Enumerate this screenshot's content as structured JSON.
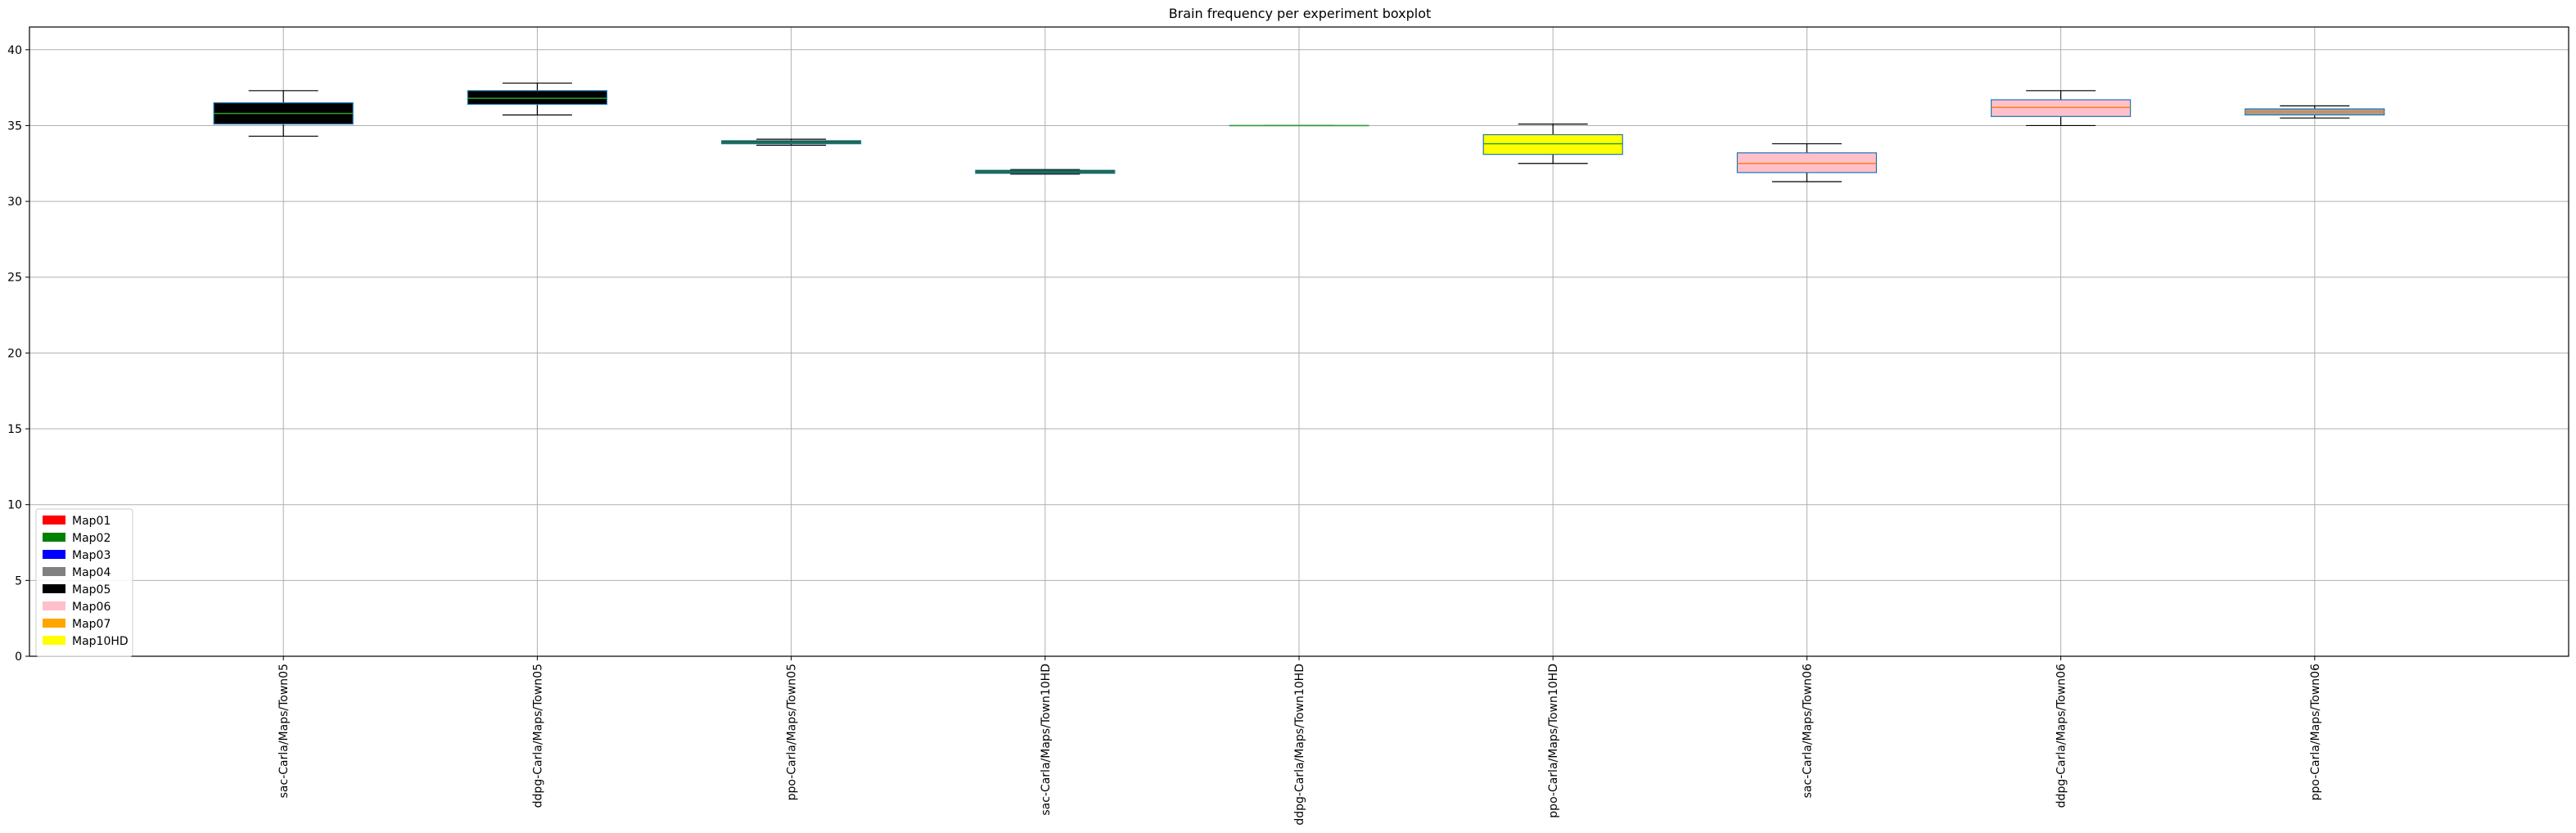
{
  "chart_data": {
    "type": "boxplot",
    "title": "Brain frequency per experiment boxplot",
    "xlabel": "",
    "ylabel": "",
    "ylim": [
      0,
      41.5
    ],
    "yticks": [
      0,
      5,
      10,
      15,
      20,
      25,
      30,
      35,
      40
    ],
    "grid": true,
    "legend_position": "lower-left",
    "categories": [
      "sac-Carla/Maps/Town05",
      "ddpg-Carla/Maps/Town05",
      "ppo-Carla/Maps/Town05",
      "sac-Carla/Maps/Town10HD",
      "ddpg-Carla/Maps/Town10HD",
      "ppo-Carla/Maps/Town10HD",
      "sac-Carla/Maps/Town06",
      "ddpg-Carla/Maps/Town06",
      "ppo-Carla/Maps/Town06"
    ],
    "boxes": [
      {
        "whisker_low": 34.3,
        "q1": 35.1,
        "median": 35.8,
        "q3": 36.5,
        "whisker_high": 37.3,
        "fill": "#000000",
        "edge": "#1f77b4",
        "median_color": "#2ca02c"
      },
      {
        "whisker_low": 35.7,
        "q1": 36.4,
        "median": 36.8,
        "q3": 37.3,
        "whisker_high": 37.8,
        "fill": "#000000",
        "edge": "#1f77b4",
        "median_color": "#2ca02c"
      },
      {
        "whisker_low": 33.7,
        "q1": 33.8,
        "median": 33.9,
        "q3": 34.0,
        "whisker_high": 34.1,
        "fill": "#000000",
        "edge": "#1f77b4",
        "median_color": "#2ca02c"
      },
      {
        "whisker_low": 31.8,
        "q1": 31.85,
        "median": 31.95,
        "q3": 32.05,
        "whisker_high": 32.1,
        "fill": "#000000",
        "edge": "#1f77b4",
        "median_color": "#2ca02c"
      },
      {
        "whisker_low": 35.0,
        "q1": 35.0,
        "median": 35.0,
        "q3": 35.0,
        "whisker_high": 35.0,
        "fill": "#000000",
        "edge": "#1f77b4",
        "median_color": "#2ca02c"
      },
      {
        "whisker_low": 32.5,
        "q1": 33.1,
        "median": 33.8,
        "q3": 34.4,
        "whisker_high": 35.1,
        "fill": "#ffff00",
        "edge": "#1f77b4",
        "median_color": "#2ca02c"
      },
      {
        "whisker_low": 31.3,
        "q1": 31.9,
        "median": 32.5,
        "q3": 33.2,
        "whisker_high": 33.8,
        "fill": "#ffc0cb",
        "edge": "#1f77b4",
        "median_color": "#ff7f0e"
      },
      {
        "whisker_low": 35.0,
        "q1": 35.6,
        "median": 36.2,
        "q3": 36.7,
        "whisker_high": 37.3,
        "fill": "#ffc0cb",
        "edge": "#1f77b4",
        "median_color": "#ff7f0e"
      },
      {
        "whisker_low": 35.5,
        "q1": 35.7,
        "median": 35.9,
        "q3": 36.1,
        "whisker_high": 36.3,
        "fill": "#a0a0a0",
        "edge": "#1f77b4",
        "median_color": "#ff7f0e"
      }
    ],
    "legend": [
      {
        "label": "Map01",
        "color": "#ff0000"
      },
      {
        "label": "Map02",
        "color": "#008000"
      },
      {
        "label": "Map03",
        "color": "#0000ff"
      },
      {
        "label": "Map04",
        "color": "#808080"
      },
      {
        "label": "Map05",
        "color": "#000000"
      },
      {
        "label": "Map06",
        "color": "#ffc0cb"
      },
      {
        "label": "Map07",
        "color": "#ffa500"
      },
      {
        "label": "Map10HD",
        "color": "#ffff00"
      }
    ]
  }
}
